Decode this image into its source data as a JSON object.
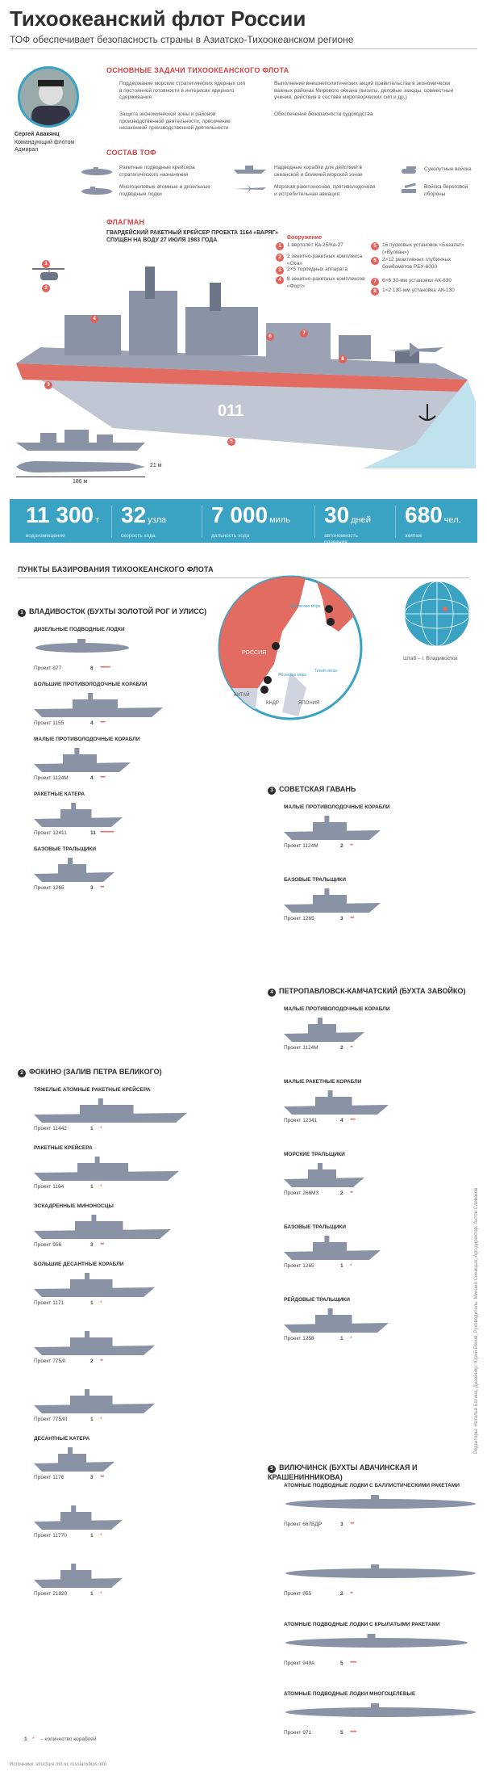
{
  "title": "Тихоокеанский флот России",
  "subtitle": "ТОФ обеспечивает безопасность страны в Азиатско-Тихоокеанском регионе",
  "commander": {
    "name": "Сергей Авакянц",
    "role1": "Командующий флотом",
    "role2": "Адмирал"
  },
  "tasks": {
    "heading": "ОСНОВНЫЕ ЗАДАЧИ ТИХООКЕАНСКОГО ФЛОТА",
    "items": [
      "Поддержание морских стратегических ядерных сил в постоянной готовности в интересах ядерного сдерживания",
      "Выполнение внешнеполитических акций правительства в экономически важных районах Мирового океана (визиты, деловые заходы, совместные учения, действия в составе миротворческих сил и др.)",
      "Защита экономической зоны и районов производственной деятельности, пресечение незаконной производственной деятельности",
      "Обеспечение безопасности судоходства"
    ]
  },
  "composition": {
    "heading": "СОСТАВ ТОФ",
    "items": [
      "Ракетные подводные крейсера стратегического назначения",
      "Надводные корабли для действий в океанской и ближней морской зонах",
      "Сухопутные войска",
      "Многоцелевые атомные и дизельные подводные лодки",
      "Морская ракетоносная, противолодочная и истребительная авиация",
      "Войска береговой обороны"
    ]
  },
  "flagship": {
    "heading": "ФЛАГМАН",
    "desc1": "ГВАРДЕЙСКИЙ РАКЕТНЫЙ КРЕЙСЕР ПРОЕКТА 1164 «ВАРЯГ»",
    "desc2": "СПУЩЕН НА ВОДУ 27 ИЮЛЯ 1983 ГОДА",
    "armament_heading": "Вооружение",
    "armament": [
      {
        "n": "1",
        "t": "1 вертолёт Ка-25/Ка-27"
      },
      {
        "n": "2",
        "t": "2 зенитно-ракетных комплекса «Оса»"
      },
      {
        "n": "3",
        "t": "2×5 торпедных аппарата"
      },
      {
        "n": "4",
        "t": "8 зенитно-ракетных комплексов «Форт»"
      },
      {
        "n": "5",
        "t": "16 пусковых установок «Базальт» («Вулкан»)"
      },
      {
        "n": "6",
        "t": "2×12 реактивных глубинных бомбомётов РБУ-6000"
      },
      {
        "n": "7",
        "t": "6×6 30-мм установки АК-630"
      },
      {
        "n": "8",
        "t": "1×2 130-мм установка АК-130"
      }
    ],
    "hull_number": "011",
    "dim_width": "21 м",
    "dim_length": "186 м"
  },
  "stats": [
    {
      "value": "11 300",
      "unit": "т",
      "label": "водоизмещение"
    },
    {
      "value": "32",
      "unit": "узла",
      "label": "скорость хода"
    },
    {
      "value": "7 000",
      "unit": "миль",
      "label": "дальность хода"
    },
    {
      "value": "30",
      "unit": "дней",
      "label": "автономность плавания"
    },
    {
      "value": "680",
      "unit": "чел.",
      "label": "экипаж"
    }
  ],
  "bases_heading": "ПУНКТЫ БАЗИРОВАНИЯ ТИХООКЕАНСКОГО ФЛОТА",
  "map": {
    "russia": "РОССИЯ",
    "china": "КИТАЙ",
    "japan": "ЯПОНИЯ",
    "korea": "КНДР",
    "sea": "Японское море",
    "ocean": "Тихий океан",
    "bering": "Берингово море",
    "hq": "Штаб – г. Владивосток"
  },
  "base1": {
    "name": "ВЛАДИВОСТОК (БУХТЫ ЗОЛОТОЙ РОГ И УЛИСС)",
    "cats": [
      {
        "title": "ДИЗЕЛЬНЫЕ ПОДВОДНЫЕ ЛОДКИ",
        "proj": "Проект 877",
        "count": "8",
        "stars": "********"
      },
      {
        "title": "БОЛЬШИЕ ПРОТИВОЛОДОЧНЫЕ КОРАБЛИ",
        "proj": "Проект 1155",
        "count": "4",
        "stars": "****"
      },
      {
        "title": "МАЛЫЕ ПРОТИВОЛОДОЧНЫЕ КОРАБЛИ",
        "proj": "Проект 1124М",
        "count": "4",
        "stars": "****"
      },
      {
        "title": "РАКЕТНЫЕ КАТЕРА",
        "proj": "Проект 12411",
        "count": "11",
        "stars": "***********"
      },
      {
        "title": "БАЗОВЫЕ ТРАЛЬЩИКИ",
        "proj": "Проект 1265",
        "count": "3",
        "stars": "***"
      }
    ]
  },
  "base2": {
    "name": "ФОКИНО (ЗАЛИВ ПЕТРА ВЕЛИКОГО)",
    "cats": [
      {
        "title": "ТЯЖЕЛЫЕ АТОМНЫЕ РАКЕТНЫЕ КРЕЙСЕРА",
        "proj": "Проект 11442",
        "count": "1",
        "stars": "*"
      },
      {
        "title": "РАКЕТНЫЕ КРЕЙСЕРА",
        "proj": "Проект 1164",
        "count": "1",
        "stars": "*"
      },
      {
        "title": "ЭСКАДРЕННЫЕ МИНОНОСЦЫ",
        "proj": "Проект 956",
        "count": "3",
        "stars": "***"
      },
      {
        "title": "БОЛЬШИЕ ДЕСАНТНЫЕ КОРАБЛИ",
        "proj": "Проект 1171",
        "count": "1",
        "stars": "*"
      },
      {
        "title": "",
        "proj": "Проект 775/II",
        "count": "2",
        "stars": "**"
      },
      {
        "title": "",
        "proj": "Проект 775/III",
        "count": "1",
        "stars": "*"
      },
      {
        "title": "ДЕСАНТНЫЕ КАТЕРА",
        "proj": "Проект 1176",
        "count": "3",
        "stars": "***"
      },
      {
        "title": "",
        "proj": "Проект 11770",
        "count": "1",
        "stars": "*"
      },
      {
        "title": "",
        "proj": "Проект 21820",
        "count": "1",
        "stars": "*"
      }
    ]
  },
  "base3": {
    "name": "СОВЕТСКАЯ ГАВАНЬ",
    "cats": [
      {
        "title": "МАЛЫЕ ПРОТИВОЛОДОЧНЫЕ КОРАБЛИ",
        "proj": "Проект 1124М",
        "count": "2",
        "stars": "**"
      },
      {
        "title": "БАЗОВЫЕ ТРАЛЬЩИКИ",
        "proj": "Проект 1265",
        "count": "3",
        "stars": "***"
      }
    ]
  },
  "base4": {
    "name": "ПЕТРОПАВЛОВСК-КАМЧАТСКИЙ (БУХТА ЗАВОЙКО)",
    "cats": [
      {
        "title": "МАЛЫЕ ПРОТИВОЛОДОЧНЫЕ КОРАБЛИ",
        "proj": "Проект 1124М",
        "count": "2",
        "stars": "**"
      },
      {
        "title": "МАЛЫЕ РАКЕТНЫЕ КОРАБЛИ",
        "proj": "Проект 12341",
        "count": "4",
        "stars": "****"
      },
      {
        "title": "МОРСКИЕ ТРАЛЬЩИКИ",
        "proj": "Проект 266М3",
        "count": "2",
        "stars": "**"
      },
      {
        "title": "БАЗОВЫЕ ТРАЛЬЩИКИ",
        "proj": "Проект 1265",
        "count": "1",
        "stars": "*"
      },
      {
        "title": "РЕЙДОВЫЕ ТРАЛЬЩИКИ",
        "proj": "Проект 1258",
        "count": "1",
        "stars": "*"
      }
    ]
  },
  "base5": {
    "name": "ВИЛЮЧИНСК (БУХТЫ АВАЧИНСКАЯ И КРАШЕНИННИКОВА)",
    "cats": [
      {
        "title": "АТОМНЫЕ ПОДВОДНЫЕ ЛОДКИ С БАЛЛИСТИЧЕСКИМИ РАКЕТАМИ",
        "proj": "Проект 667БДР",
        "count": "3",
        "stars": "***"
      },
      {
        "title": "",
        "proj": "Проект 955",
        "count": "2",
        "stars": "**"
      },
      {
        "title": "АТОМНЫЕ ПОДВОДНЫЕ ЛОДКИ С КРЫЛАТЫМИ РАКЕТАМИ",
        "proj": "Проект 949А",
        "count": "5",
        "stars": "*****"
      },
      {
        "title": "АТОМНЫЕ ПОДВОДНЫЕ ЛОДКИ МНОГОЦЕЛЕВЫЕ",
        "proj": "Проект 971",
        "count": "5",
        "stars": "*****"
      }
    ]
  },
  "legend": {
    "count": "1",
    "text": "– количество кораблей"
  },
  "source": "Источники: structure.mil.ru, russianships.info",
  "credits": "Редакторы: Наталья Батина, Дизайнер: Юрий Ряхов, Руководитель: Михаил Синицын, Арт-директор: Антон Сливаков",
  "colors": {
    "accent": "#d24545",
    "banner": "#3aa3c4",
    "ship": "#8a93a6"
  }
}
